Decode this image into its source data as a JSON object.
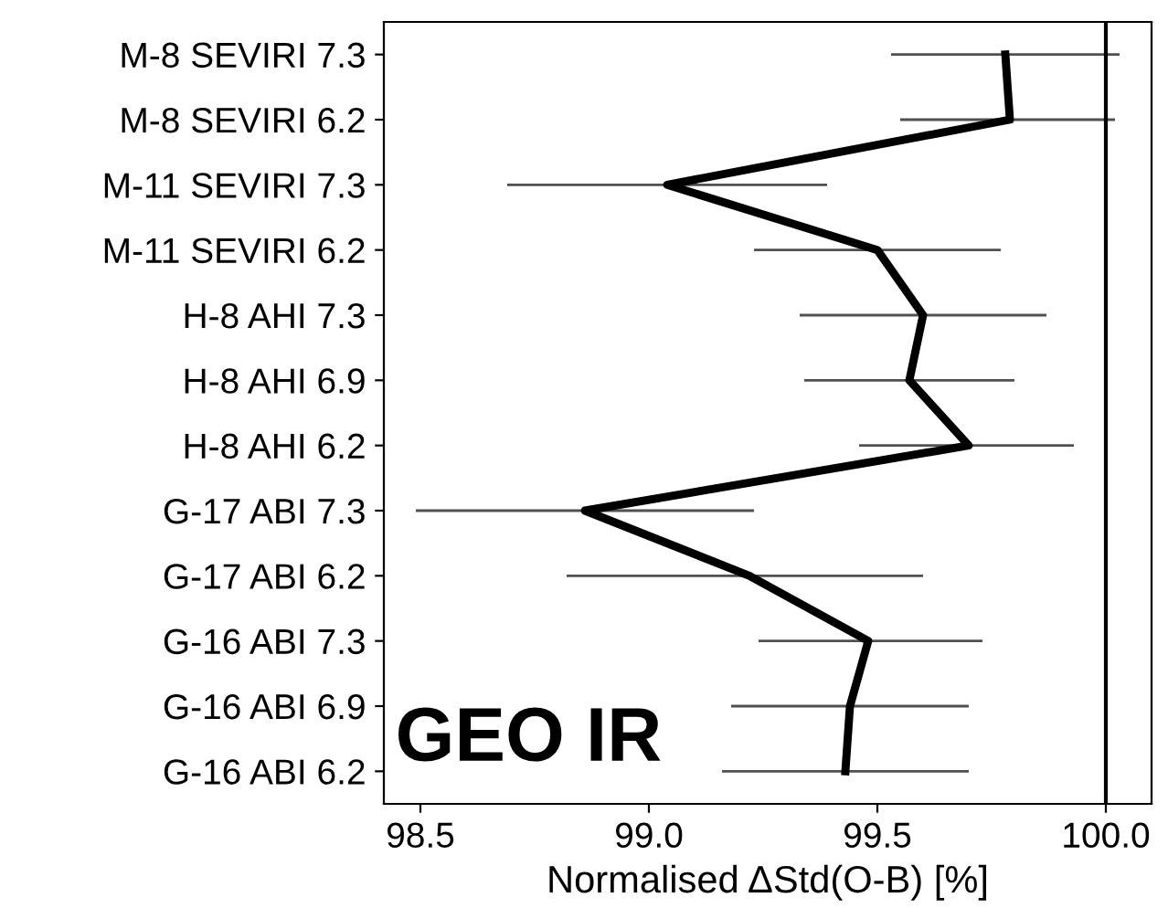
{
  "chart_data": {
    "type": "line",
    "orientation": "horizontal",
    "xlabel": "Normalised ΔStd(O-B) [%]",
    "categories": [
      "M-8 SEVIRI 7.3",
      "M-8 SEVIRI 6.2",
      "M-11 SEVIRI 7.3",
      "M-11 SEVIRI 6.2",
      "H-8 AHI 7.3",
      "H-8 AHI 6.9",
      "H-8 AHI 6.2",
      "G-17 ABI 7.3",
      "G-17 ABI 6.2",
      "G-16 ABI 7.3",
      "G-16 ABI 6.9",
      "G-16 ABI 6.2"
    ],
    "series": [
      {
        "color": "#000000",
        "values": [
          99.78,
          99.79,
          99.04,
          99.5,
          99.6,
          99.57,
          99.7,
          98.86,
          99.22,
          99.48,
          99.44,
          99.43
        ],
        "errors": [
          [
            99.53,
            100.03
          ],
          [
            99.55,
            100.02
          ],
          [
            98.69,
            99.39
          ],
          [
            99.23,
            99.77
          ],
          [
            99.33,
            99.87
          ],
          [
            99.34,
            99.8
          ],
          [
            99.46,
            99.93
          ],
          [
            98.49,
            99.23
          ],
          [
            98.82,
            99.6
          ],
          [
            99.24,
            99.73
          ],
          [
            99.18,
            99.7
          ],
          [
            99.16,
            99.7
          ]
        ]
      }
    ],
    "xlim": [
      98.42,
      100.1
    ],
    "xticks": [
      {
        "value": 98.5,
        "label": "98.5"
      },
      {
        "value": 99.0,
        "label": "99.0"
      },
      {
        "value": 99.5,
        "label": "99.5"
      },
      {
        "value": 100.0,
        "label": "100.0"
      }
    ],
    "ref_lines": [
      {
        "axis": "x",
        "value": 100.0,
        "color": "#000000"
      }
    ],
    "annotations": [
      "GEO IR"
    ],
    "grid": false,
    "legend": false,
    "marker": "none",
    "line_style": "solid"
  }
}
